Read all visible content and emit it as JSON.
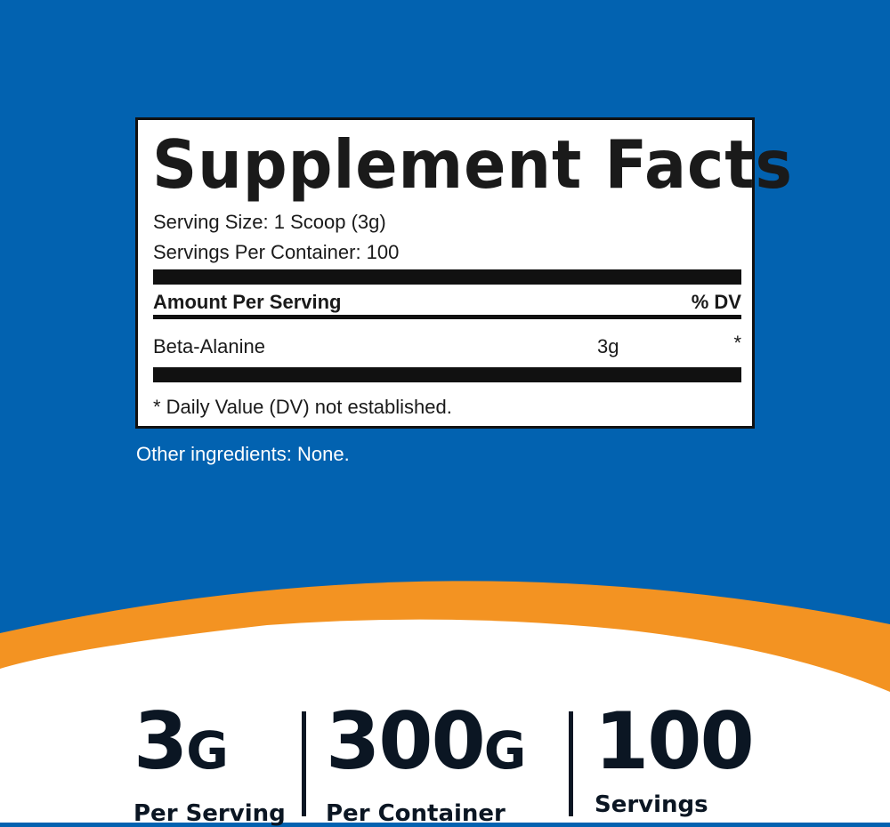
{
  "colors": {
    "background": "#0262b0",
    "accent": "#f39322",
    "text_dark": "#0b1623"
  },
  "facts": {
    "title": "Supplement Facts",
    "serving_size": "Serving Size: 1 Scoop (3g)",
    "servings_per_container": "Servings Per Container: 100",
    "amount_header": "Amount Per Serving",
    "dv_header": "% DV",
    "ingredients": [
      {
        "name": "Beta-Alanine",
        "amount": "3g",
        "dv": "*"
      }
    ],
    "footnote": "* Daily Value (DV) not established."
  },
  "other_ingredients": "Other ingredients: None.",
  "stats": [
    {
      "value": "3",
      "unit": "G",
      "label": "Per Serving"
    },
    {
      "value": "300",
      "unit": "G",
      "label": "Per Container"
    },
    {
      "value": "100",
      "unit": "",
      "label": "Servings"
    }
  ]
}
